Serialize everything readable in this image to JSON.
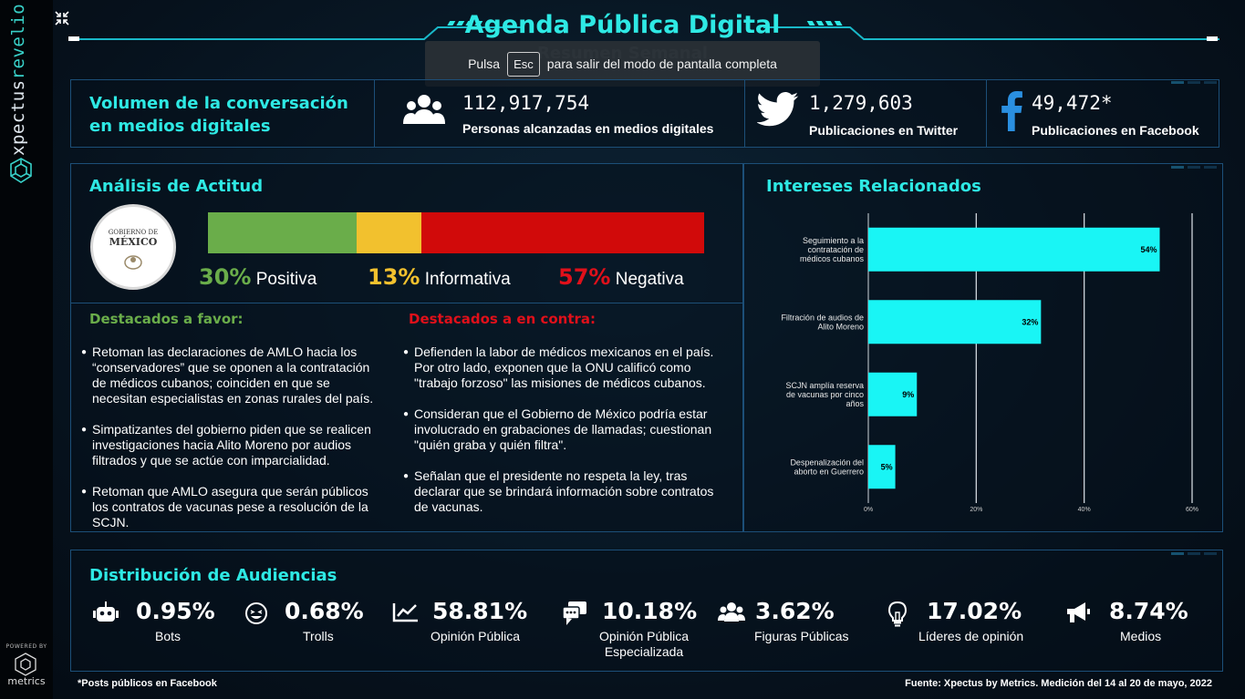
{
  "brand": {
    "name_a": "xpectus",
    "name_b": "revelio",
    "powered_by": "POWERED BY",
    "powered_name": "metrics"
  },
  "header": {
    "title": "Agenda Pública Digital",
    "subtitle": "Resumen Semanal",
    "accent": "#2ee9e4"
  },
  "toast": {
    "before": "Pulsa",
    "key": "Esc",
    "after": "para salir del modo de pantalla completa"
  },
  "volume": {
    "title_line1": "Volumen de la conversación",
    "title_line2": "en medios digitales",
    "stats": [
      {
        "icon": "people-icon",
        "value": "112,917,754",
        "label": "Personas alcanzadas en medios digitales"
      },
      {
        "icon": "twitter-icon",
        "value": "1,279,603",
        "label": "Publicaciones en Twitter"
      },
      {
        "icon": "facebook-icon",
        "value": "49,472*",
        "label": "Publicaciones en Facebook"
      }
    ]
  },
  "attitude": {
    "title": "Análisis de Actitud",
    "logo_line1": "GOBIERNO DE",
    "logo_line2": "MÉXICO",
    "segments": [
      {
        "pct": "30%",
        "label": "Positiva",
        "value": 30,
        "color": "#6aad4a"
      },
      {
        "pct": "13%",
        "label": "Informativa",
        "value": 13,
        "color": "#f2c12e"
      },
      {
        "pct": "57%",
        "label": "Negativa",
        "value": 57,
        "color": "#d10a0a"
      }
    ],
    "favor_title": "Destacados a favor:",
    "contra_title": "Destacados a en contra:",
    "favor": [
      "Retoman las declaraciones de AMLO hacia los “conservadores” que se oponen a la contratación de médicos cubanos; coinciden en que se necesitan especialistas en zonas rurales del país.",
      "Simpatizantes del gobierno piden que se realicen investigaciones hacia Alito Moreno por audios filtrados y que se actúe con imparcialidad.",
      "Retoman que AMLO asegura que serán públicos los contratos de vacunas pese a resolución de la SCJN."
    ],
    "contra": [
      "Defienden la labor de médicos mexicanos en el país. Por otro lado, exponen que la ONU calificó como \"trabajo forzoso\" las misiones de médicos cubanos.",
      "Consideran que el Gobierno de México podría estar involucrado en grabaciones de llamadas; cuestionan \"quién graba y quién filtra\".",
      "Señalan que el presidente no respeta la ley, tras declarar que se brindará información sobre contratos de vacunas."
    ]
  },
  "interests": {
    "title": "Intereses Relacionados"
  },
  "chart_data": {
    "type": "bar",
    "orientation": "horizontal",
    "categories": [
      [
        "Seguimiento a la",
        "contratación de",
        "médicos cubanos"
      ],
      [
        "Filtración de audios de",
        "Alito Moreno"
      ],
      [
        "SCJN amplía reserva",
        "de vacunas por cinco",
        "años"
      ],
      [
        "Despenalización del",
        "aborto en Guerrero"
      ]
    ],
    "values": [
      54,
      32,
      9,
      5
    ],
    "data_labels": [
      "54%",
      "32%",
      "9%",
      "5%"
    ],
    "xticks": [
      "0%",
      "20%",
      "40%",
      "60%"
    ],
    "xlim": [
      0,
      60
    ],
    "grid": true,
    "bar_color": "#19f5f5"
  },
  "audiences": {
    "title": "Distribución de Audiencias",
    "items": [
      {
        "icon": "robot-icon",
        "value": "0.95%",
        "label": "Bots"
      },
      {
        "icon": "laughing-face-icon",
        "value": "0.68%",
        "label": "Trolls"
      },
      {
        "icon": "line-chart-icon",
        "value": "58.81%",
        "label": "Opinión Pública"
      },
      {
        "icon": "chat-bubble-icon",
        "value": "10.18%",
        "label": "Opinión Pública",
        "label2": "Especializada"
      },
      {
        "icon": "group-icon",
        "value": "3.62%",
        "label": "Figuras Públicas"
      },
      {
        "icon": "lightbulb-icon",
        "value": "17.02%",
        "label": "Líderes de opinión"
      },
      {
        "icon": "megaphone-icon",
        "value": "8.74%",
        "label": "Medios"
      }
    ]
  },
  "footer": {
    "note": "*Posts públicos en Facebook",
    "source": "Fuente: Xpectus by Metrics. Medición del 14 al 20 de mayo, 2022"
  }
}
